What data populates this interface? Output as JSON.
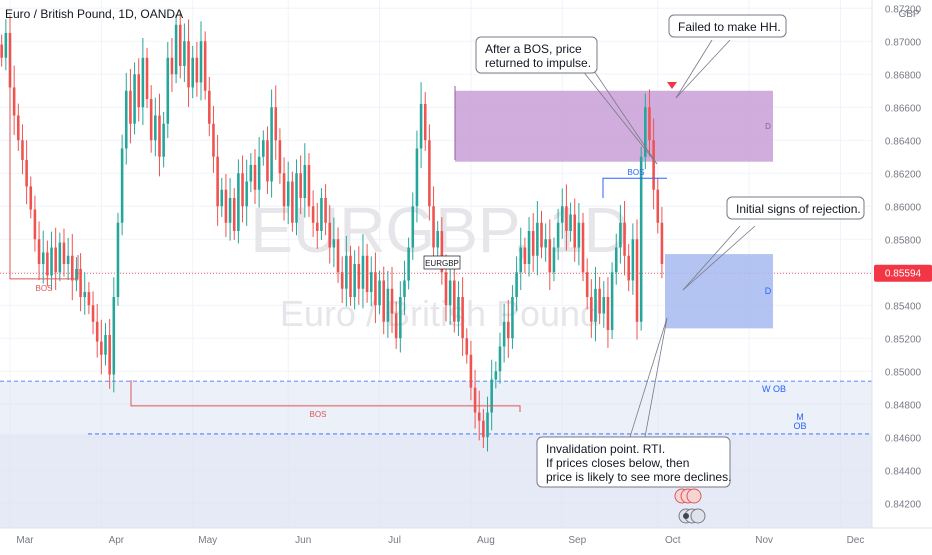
{
  "symbol": {
    "name": "Euro / British Pound, 1D, OANDA",
    "watermark_ticker": "EURGBP, 1D",
    "watermark_name": "Euro / British Pound",
    "series_label": "EURGBP",
    "currency": "GBP",
    "last_price": "0.85594"
  },
  "colors": {
    "bull": "#26a69a",
    "bear": "#ef5350",
    "bos_red": "#e05555",
    "bos_blue": "#2962ff",
    "supply_zone": "#c89fd6",
    "demand_zone": "#a6b8f0",
    "ob_band": "#dde3f3",
    "axis_text": "#787b86"
  },
  "chart_data": {
    "type": "candlestick",
    "title": "Euro / British Pound, 1D, OANDA",
    "y_axis": {
      "currency_label": "GBP",
      "range": [
        0.8405,
        0.8725
      ],
      "tick_labels": [
        "0.87200",
        "0.87000",
        "0.86800",
        "0.86600",
        "0.86400",
        "0.86200",
        "0.86000",
        "0.85800",
        "0.85600",
        "0.85400",
        "0.85200",
        "0.85000",
        "0.84800",
        "0.84600",
        "0.84400",
        "0.84200"
      ],
      "ticks": [
        0.872,
        0.87,
        0.868,
        0.866,
        0.864,
        0.862,
        0.86,
        0.858,
        0.856,
        0.854,
        0.852,
        0.85,
        0.848,
        0.846,
        0.844,
        0.842
      ]
    },
    "x_axis": {
      "labels": [
        "Mar",
        "Apr",
        "May",
        "Jun",
        "Jul",
        "Aug",
        "Sep",
        "Oct",
        "Nov",
        "Dec"
      ],
      "label_day_index": [
        0,
        22,
        44,
        67,
        89,
        111,
        133,
        156,
        178,
        200
      ]
    },
    "total_days_span": 210,
    "candles_start_day": -2,
    "last_price_line": 0.85594,
    "close_series": [
      0.869,
      0.8705,
      0.8672,
      0.8655,
      0.864,
      0.8628,
      0.8612,
      0.8598,
      0.858,
      0.8565,
      0.8572,
      0.8558,
      0.8575,
      0.856,
      0.8578,
      0.8565,
      0.857,
      0.8555,
      0.8562,
      0.8545,
      0.8548,
      0.854,
      0.853,
      0.8518,
      0.851,
      0.8522,
      0.8498,
      0.8545,
      0.859,
      0.8635,
      0.867,
      0.865,
      0.868,
      0.866,
      0.869,
      0.8665,
      0.864,
      0.8655,
      0.863,
      0.865,
      0.869,
      0.868,
      0.871,
      0.8685,
      0.87,
      0.8672,
      0.869,
      0.8675,
      0.87,
      0.867,
      0.865,
      0.863,
      0.86,
      0.861,
      0.859,
      0.8605,
      0.8585,
      0.862,
      0.86,
      0.8615,
      0.8625,
      0.861,
      0.863,
      0.864,
      0.8615,
      0.866,
      0.864,
      0.862,
      0.86,
      0.8615,
      0.859,
      0.862,
      0.8605,
      0.8625,
      0.86,
      0.859,
      0.8585,
      0.8605,
      0.859,
      0.8575,
      0.858,
      0.856,
      0.855,
      0.857,
      0.8545,
      0.8565,
      0.855,
      0.857,
      0.8548,
      0.856,
      0.854,
      0.8555,
      0.853,
      0.855,
      0.8535,
      0.852,
      0.8545,
      0.8555,
      0.8575,
      0.86,
      0.8635,
      0.8662,
      0.864,
      0.86,
      0.8575,
      0.8585,
      0.856,
      0.854,
      0.8555,
      0.853,
      0.8545,
      0.852,
      0.851,
      0.849,
      0.8475,
      0.847,
      0.846,
      0.8475,
      0.8495,
      0.85,
      0.8515,
      0.853,
      0.852,
      0.8545,
      0.856,
      0.8575,
      0.8565,
      0.8585,
      0.857,
      0.859,
      0.8575,
      0.858,
      0.856,
      0.8575,
      0.859,
      0.86,
      0.8585,
      0.8595,
      0.8575,
      0.859,
      0.856,
      0.8545,
      0.853,
      0.855,
      0.8535,
      0.8545,
      0.8525,
      0.856,
      0.8575,
      0.859,
      0.857,
      0.8555,
      0.858,
      0.853,
      0.863,
      0.866,
      0.864,
      0.861,
      0.859,
      0.8565
    ]
  },
  "annotations": {
    "bos_labels": {
      "left": "BOS",
      "middle": "BOS",
      "top": "BOS"
    },
    "ob_labels": {
      "supply": "D",
      "demand": "D",
      "weekly": "W OB",
      "monthly_line1": "M",
      "monthly_line2": "OB"
    },
    "callouts": {
      "after_bos": [
        "After a BOS, price",
        "returned to impulse."
      ],
      "failed_hh": [
        "Failed to make HH."
      ],
      "rejection": [
        "Initial signs of rejection."
      ],
      "invalidation": [
        "Invalidation point.  RTI.",
        "If prices closes below, then",
        "price is likely to see more declines."
      ]
    },
    "levels": {
      "supply_zone": [
        0.8627,
        0.867
      ],
      "demand_zone": [
        0.8526,
        0.8571
      ],
      "weekly_ob_top": 0.8494,
      "monthly_ob_top": 0.8462,
      "bos_left_level": 0.8556,
      "bos_mid_level": 0.8479,
      "bos_top_level": 0.8617
    }
  }
}
